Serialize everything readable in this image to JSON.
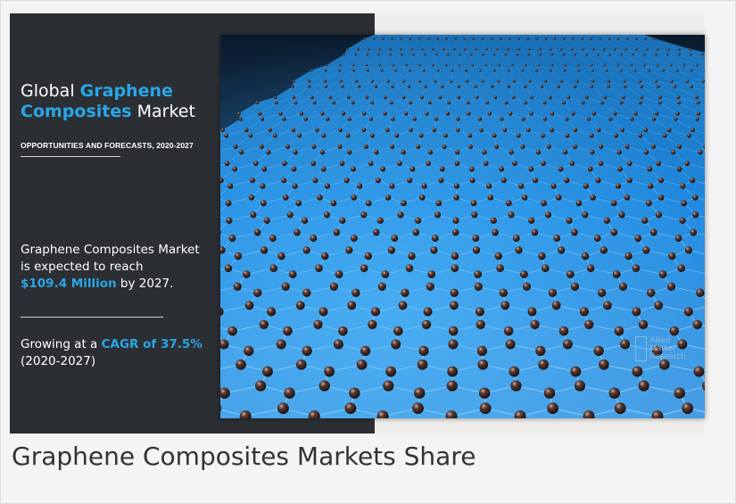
{
  "infographic": {
    "title_prefix": "Global ",
    "title_accent_1": "Graphene",
    "title_accent_2": "Composites",
    "title_suffix": " Market",
    "subtitle": "OPPORTUNITIES AND FORECASTS, 2020-2027",
    "stat_1_line_1": "Graphene Composites Market",
    "stat_1_line_2": "is expected to reach",
    "stat_1_value": "$109.4 Million",
    "stat_1_suffix": " by 2027.",
    "stat_2_prefix": "Growing at a ",
    "stat_2_value": "CAGR of 37.5%",
    "stat_2_period": "(2020-2027)",
    "watermark_line_1": "Allied",
    "watermark_line_2": "Market",
    "watermark_line_3": "Research",
    "colors": {
      "panel": "#2b2f33",
      "accent": "#29a6e6",
      "hex_fill": "#2f8fd6",
      "atom": "#3a2a28"
    },
    "image_subject": "graphene hexagonal lattice"
  },
  "caption": "Graphene Composites Markets Share"
}
